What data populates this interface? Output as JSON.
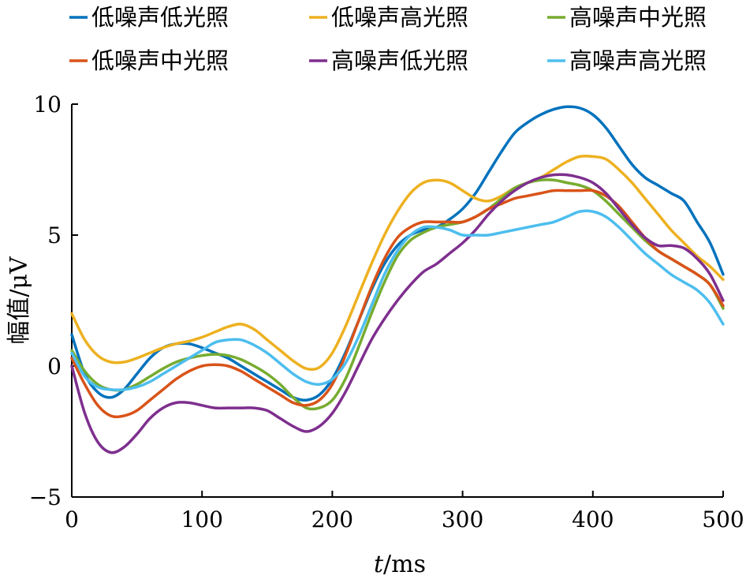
{
  "chart_data": {
    "type": "line",
    "title": "",
    "xlabel_italic": "t",
    "xlabel_unit": "/ms",
    "ylabel": "幅值/μV",
    "xlim": [
      0,
      500
    ],
    "ylim": [
      -5,
      10
    ],
    "xticks": [
      0,
      100,
      200,
      300,
      400,
      500
    ],
    "yticks": [
      -5,
      0,
      5,
      10
    ],
    "xtick_labels": [
      "0",
      "100",
      "200",
      "300",
      "400",
      "500"
    ],
    "ytick_labels": [
      "−5",
      "0",
      "5",
      "10"
    ],
    "grid": false,
    "legend_placement": "top",
    "x": [
      0,
      10,
      20,
      30,
      40,
      50,
      60,
      70,
      80,
      90,
      100,
      110,
      120,
      130,
      140,
      150,
      160,
      170,
      180,
      190,
      200,
      210,
      220,
      230,
      240,
      250,
      260,
      270,
      280,
      290,
      300,
      310,
      320,
      330,
      340,
      350,
      360,
      370,
      380,
      390,
      400,
      410,
      420,
      430,
      440,
      450,
      460,
      470,
      480,
      490,
      500
    ],
    "series": [
      {
        "name": "低噪声低光照",
        "color": "#0072BD",
        "values": [
          1.2,
          -0.3,
          -1.0,
          -1.2,
          -0.9,
          -0.3,
          0.3,
          0.7,
          0.85,
          0.85,
          0.7,
          0.5,
          0.3,
          0.0,
          -0.3,
          -0.6,
          -0.9,
          -1.2,
          -1.3,
          -1.1,
          -0.5,
          0.5,
          1.7,
          2.9,
          3.9,
          4.6,
          5.0,
          5.2,
          5.3,
          5.6,
          6.0,
          6.6,
          7.4,
          8.2,
          8.9,
          9.3,
          9.6,
          9.8,
          9.9,
          9.85,
          9.6,
          9.1,
          8.4,
          7.7,
          7.2,
          6.9,
          6.6,
          6.3,
          5.5,
          4.7,
          3.5
        ]
      },
      {
        "name": "低噪声高光照",
        "color": "#EDB120",
        "values": [
          2.0,
          1.0,
          0.4,
          0.15,
          0.15,
          0.3,
          0.5,
          0.7,
          0.85,
          0.95,
          1.1,
          1.3,
          1.5,
          1.6,
          1.4,
          1.0,
          0.6,
          0.2,
          -0.1,
          -0.05,
          0.5,
          1.5,
          2.7,
          3.9,
          5.0,
          5.9,
          6.6,
          7.0,
          7.1,
          7.0,
          6.7,
          6.4,
          6.3,
          6.5,
          6.8,
          7.0,
          7.2,
          7.5,
          7.8,
          8.0,
          8.0,
          7.9,
          7.5,
          7.0,
          6.4,
          5.8,
          5.2,
          4.7,
          4.2,
          3.8,
          3.3
        ]
      },
      {
        "name": "高噪声中光照",
        "color": "#77AC30",
        "values": [
          0.6,
          -0.2,
          -0.7,
          -0.9,
          -0.9,
          -0.7,
          -0.4,
          -0.1,
          0.15,
          0.3,
          0.4,
          0.45,
          0.4,
          0.25,
          0.0,
          -0.3,
          -0.7,
          -1.2,
          -1.6,
          -1.6,
          -1.3,
          -0.5,
          0.7,
          2.0,
          3.2,
          4.2,
          4.8,
          5.1,
          5.3,
          5.4,
          5.5,
          5.7,
          6.0,
          6.4,
          6.8,
          7.0,
          7.1,
          7.1,
          7.0,
          6.9,
          6.7,
          6.3,
          5.8,
          5.3,
          4.8,
          4.4,
          4.1,
          3.8,
          3.5,
          3.1,
          2.2
        ]
      },
      {
        "name": "低噪声中光照",
        "color": "#D95319",
        "values": [
          0.3,
          -0.7,
          -1.5,
          -1.9,
          -1.9,
          -1.7,
          -1.3,
          -0.9,
          -0.5,
          -0.2,
          0.0,
          0.05,
          0.0,
          -0.2,
          -0.5,
          -0.8,
          -1.1,
          -1.4,
          -1.5,
          -1.3,
          -0.7,
          0.4,
          1.7,
          3.0,
          4.1,
          4.9,
          5.3,
          5.5,
          5.5,
          5.5,
          5.5,
          5.7,
          6.0,
          6.2,
          6.4,
          6.5,
          6.6,
          6.7,
          6.7,
          6.7,
          6.7,
          6.5,
          6.1,
          5.5,
          4.9,
          4.4,
          4.1,
          3.8,
          3.5,
          3.1,
          2.3
        ]
      },
      {
        "name": "高噪声低光照",
        "color": "#7E2F8E",
        "values": [
          0.0,
          -1.8,
          -2.9,
          -3.3,
          -3.1,
          -2.6,
          -2.0,
          -1.6,
          -1.4,
          -1.4,
          -1.5,
          -1.6,
          -1.6,
          -1.6,
          -1.6,
          -1.7,
          -2.0,
          -2.3,
          -2.5,
          -2.3,
          -1.8,
          -1.0,
          0.0,
          1.0,
          1.8,
          2.5,
          3.1,
          3.6,
          3.9,
          4.3,
          4.7,
          5.2,
          5.8,
          6.3,
          6.7,
          7.0,
          7.2,
          7.3,
          7.3,
          7.2,
          7.0,
          6.6,
          6.0,
          5.4,
          4.9,
          4.6,
          4.6,
          4.5,
          4.1,
          3.5,
          2.5
        ]
      },
      {
        "name": "高噪声高光照",
        "color": "#4DBEEE",
        "values": [
          0.5,
          -0.4,
          -0.8,
          -0.9,
          -0.9,
          -0.8,
          -0.6,
          -0.3,
          0.0,
          0.3,
          0.6,
          0.9,
          1.0,
          1.0,
          0.8,
          0.5,
          0.1,
          -0.3,
          -0.6,
          -0.7,
          -0.5,
          0.1,
          1.1,
          2.3,
          3.5,
          4.4,
          5.0,
          5.3,
          5.3,
          5.2,
          5.0,
          5.0,
          5.0,
          5.1,
          5.2,
          5.3,
          5.4,
          5.5,
          5.7,
          5.9,
          5.9,
          5.7,
          5.3,
          4.8,
          4.3,
          3.9,
          3.5,
          3.2,
          2.9,
          2.4,
          1.6
        ]
      }
    ]
  }
}
